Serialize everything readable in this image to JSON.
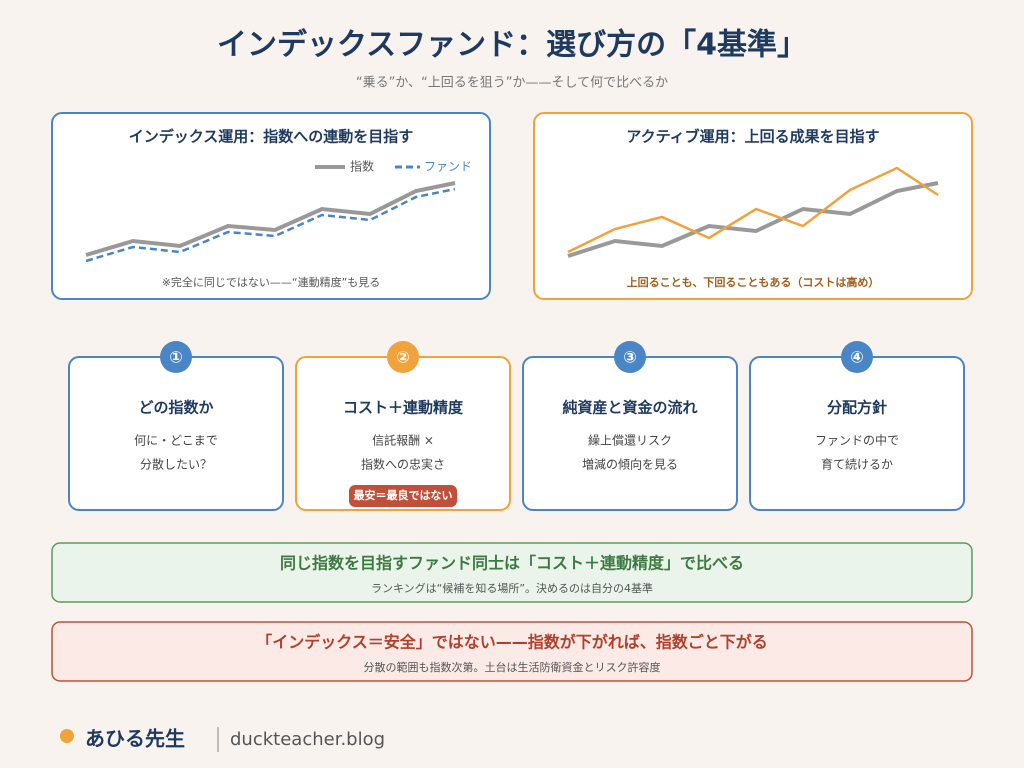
{
  "header": {
    "title": "インデックスファンド：選び方の「4基準」",
    "subtitle": "“乗る”か、“上回るを狙う”か——そして何で比べるか"
  },
  "panels": [
    {
      "title": "インデックス運用：指数への連動を目指す",
      "legend": [
        "指数",
        "ファンド"
      ],
      "note": "※完全に同じではない——“連動精度”も見る"
    },
    {
      "title": "アクティブ運用：上回る成果を目指す",
      "note": "上回ることも、下回ることもある（コストは高め）"
    }
  ],
  "criteria": [
    {
      "number": "①",
      "title": "どの指数か",
      "lines": [
        "何に・どこまで",
        "分散したい？"
      ]
    },
    {
      "number": "②",
      "title": "コスト＋連動精度",
      "lines": [
        "信託報酬 ×",
        "指数への忠実さ"
      ],
      "badge": "最安＝最良ではない"
    },
    {
      "number": "③",
      "title": "純資産と資金の流れ",
      "lines": [
        "繰上償還リスク",
        "増減の傾向を見る"
      ]
    },
    {
      "number": "④",
      "title": "分配方針",
      "lines": [
        "ファンドの中で",
        "育て続けるか"
      ]
    }
  ],
  "callouts": [
    {
      "headline": "同じ指数を目指すファンド同士は「コスト＋連動精度」で比べる",
      "sub": "ランキングは“候補を知る場所”。決めるのは自分の4基準"
    },
    {
      "headline": "「インデックス＝安全」ではない——指数が下がれば、指数ごと下がる",
      "sub": "分散の範囲も指数次第。土台は生活防衛資金とリスク許容度"
    }
  ],
  "footer": {
    "brand": "あひる先生",
    "site": "duckteacher.blog"
  }
}
